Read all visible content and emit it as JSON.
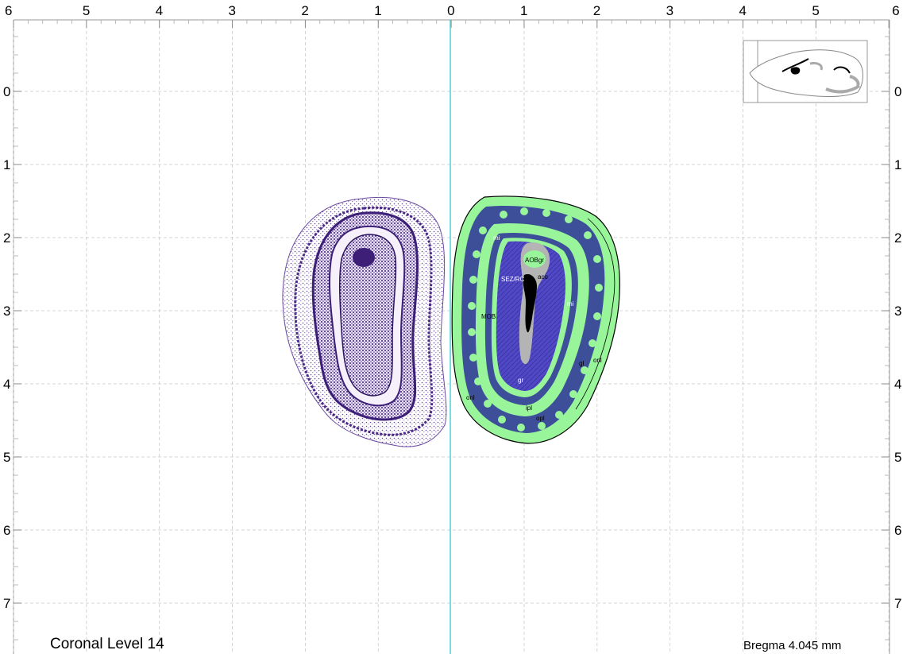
{
  "top_axis_labels": [
    "6",
    "5",
    "4",
    "3",
    "2",
    "1",
    "0",
    "1",
    "2",
    "3",
    "4",
    "5",
    "6"
  ],
  "side_axis_labels": [
    "0",
    "1",
    "2",
    "3",
    "4",
    "5",
    "6",
    "7"
  ],
  "regions": {
    "aobgr": "AOBgr",
    "aco": "aco",
    "sez_rc": "SEZ/RC",
    "mob": "MOB",
    "mi_top": "mi",
    "mi_right": "mi",
    "gl": "gl",
    "onl_right": "onl",
    "onl_left": "onl",
    "gr": "gr",
    "ipl": "ipl",
    "opl": "opl"
  },
  "caption": {
    "level": "Coronal Level 14",
    "bregma": "Bregma 4.045 mm"
  },
  "colors": {
    "midline": "#4fd0d6",
    "grid": "#c8c8c8",
    "granule": "#5a52c8",
    "green": "#98f59a",
    "dark_layer": "#3e4f9a",
    "stain": "#4b2a86"
  }
}
